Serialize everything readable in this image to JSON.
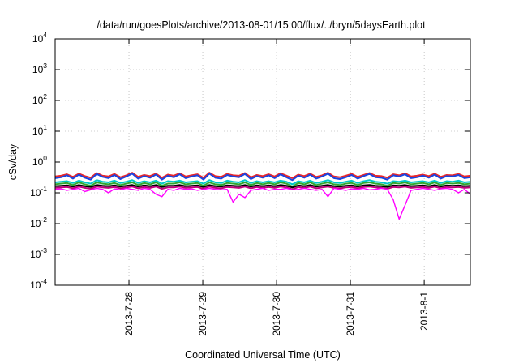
{
  "chart_data": {
    "type": "line",
    "title": "/data/run/goesPlots/archive/2013-08-01/15:00/flux/../bryn/5daysEarth.plot",
    "xlabel": "Coordinated Universal Time (UTC)",
    "ylabel": "cSv/day",
    "yscale": "log",
    "ylim": [
      0.0001,
      10000
    ],
    "xlim": [
      "2013-07-27 00:00",
      "2013-08-01 15:00"
    ],
    "grid": true,
    "y_ticks": [
      {
        "base": "10",
        "exp": "-4"
      },
      {
        "base": "10",
        "exp": "-3"
      },
      {
        "base": "10",
        "exp": "-2"
      },
      {
        "base": "10",
        "exp": "-1"
      },
      {
        "base": "10",
        "exp": "0"
      },
      {
        "base": "10",
        "exp": "1"
      },
      {
        "base": "10",
        "exp": "2"
      },
      {
        "base": "10",
        "exp": "3"
      },
      {
        "base": "10",
        "exp": "4"
      }
    ],
    "x_ticks": [
      "2013-7-28",
      "2013-7-29",
      "2013-7-30",
      "2013-7-31",
      "2013-8-1"
    ],
    "series": [
      {
        "color": "#e8262a",
        "values": [
          0.34,
          0.36,
          0.4,
          0.33,
          0.42,
          0.35,
          0.31,
          0.44,
          0.36,
          0.34,
          0.41,
          0.32,
          0.37,
          0.45,
          0.33,
          0.38,
          0.35,
          0.42,
          0.31,
          0.39,
          0.36,
          0.43,
          0.34,
          0.37,
          0.4,
          0.31,
          0.45,
          0.35,
          0.33,
          0.41,
          0.37,
          0.36,
          0.44,
          0.32,
          0.38,
          0.35,
          0.4,
          0.34,
          0.43,
          0.36,
          0.3,
          0.39,
          0.35,
          0.42,
          0.33,
          0.37,
          0.45,
          0.34,
          0.32,
          0.36,
          0.41,
          0.33,
          0.38,
          0.44,
          0.36,
          0.35,
          0.31,
          0.4,
          0.37,
          0.43,
          0.34,
          0.36,
          0.39,
          0.35,
          0.42,
          0.33,
          0.38,
          0.37,
          0.41,
          0.34,
          0.36
        ]
      },
      {
        "color": "#1a44e0",
        "values": [
          0.3,
          0.32,
          0.37,
          0.29,
          0.39,
          0.31,
          0.27,
          0.41,
          0.33,
          0.3,
          0.38,
          0.28,
          0.34,
          0.42,
          0.29,
          0.35,
          0.31,
          0.39,
          0.27,
          0.36,
          0.32,
          0.4,
          0.3,
          0.34,
          0.37,
          0.27,
          0.42,
          0.31,
          0.29,
          0.38,
          0.34,
          0.32,
          0.41,
          0.28,
          0.35,
          0.31,
          0.37,
          0.3,
          0.4,
          0.32,
          0.26,
          0.36,
          0.31,
          0.39,
          0.29,
          0.34,
          0.42,
          0.3,
          0.28,
          0.32,
          0.38,
          0.29,
          0.35,
          0.41,
          0.32,
          0.31,
          0.27,
          0.37,
          0.34,
          0.4,
          0.3,
          0.32,
          0.36,
          0.31,
          0.39,
          0.29,
          0.35,
          0.34,
          0.38,
          0.3,
          0.32
        ]
      },
      {
        "color": "#00c8c8",
        "values": [
          0.22,
          0.23,
          0.24,
          0.21,
          0.25,
          0.22,
          0.2,
          0.26,
          0.23,
          0.22,
          0.25,
          0.21,
          0.23,
          0.26,
          0.21,
          0.24,
          0.22,
          0.25,
          0.2,
          0.24,
          0.23,
          0.25,
          0.22,
          0.23,
          0.24,
          0.2,
          0.26,
          0.22,
          0.21,
          0.25,
          0.23,
          0.22,
          0.26,
          0.21,
          0.24,
          0.22,
          0.24,
          0.22,
          0.25,
          0.23,
          0.19,
          0.24,
          0.22,
          0.25,
          0.21,
          0.23,
          0.26,
          0.22,
          0.21,
          0.23,
          0.25,
          0.21,
          0.24,
          0.26,
          0.23,
          0.22,
          0.2,
          0.24,
          0.23,
          0.25,
          0.22,
          0.23,
          0.24,
          0.22,
          0.25,
          0.21,
          0.24,
          0.23,
          0.25,
          0.22,
          0.23
        ]
      },
      {
        "color": "#2fa82f",
        "values": [
          0.19,
          0.2,
          0.21,
          0.18,
          0.22,
          0.19,
          0.17,
          0.22,
          0.2,
          0.19,
          0.21,
          0.18,
          0.2,
          0.22,
          0.18,
          0.21,
          0.19,
          0.22,
          0.17,
          0.2,
          0.2,
          0.22,
          0.19,
          0.2,
          0.21,
          0.17,
          0.22,
          0.19,
          0.18,
          0.21,
          0.2,
          0.19,
          0.22,
          0.18,
          0.21,
          0.19,
          0.21,
          0.19,
          0.22,
          0.2,
          0.16,
          0.21,
          0.19,
          0.22,
          0.18,
          0.2,
          0.22,
          0.19,
          0.18,
          0.2,
          0.21,
          0.18,
          0.21,
          0.22,
          0.2,
          0.19,
          0.17,
          0.21,
          0.2,
          0.22,
          0.19,
          0.2,
          0.21,
          0.19,
          0.22,
          0.18,
          0.21,
          0.2,
          0.21,
          0.19,
          0.2
        ]
      },
      {
        "color": "#000000",
        "values": [
          0.165,
          0.17,
          0.175,
          0.16,
          0.18,
          0.165,
          0.155,
          0.18,
          0.17,
          0.165,
          0.175,
          0.16,
          0.17,
          0.18,
          0.16,
          0.175,
          0.165,
          0.18,
          0.155,
          0.17,
          0.17,
          0.18,
          0.165,
          0.17,
          0.175,
          0.155,
          0.18,
          0.165,
          0.16,
          0.175,
          0.17,
          0.165,
          0.18,
          0.16,
          0.175,
          0.165,
          0.175,
          0.165,
          0.18,
          0.17,
          0.15,
          0.175,
          0.165,
          0.18,
          0.16,
          0.17,
          0.18,
          0.165,
          0.16,
          0.17,
          0.175,
          0.16,
          0.175,
          0.18,
          0.17,
          0.165,
          0.155,
          0.175,
          0.17,
          0.18,
          0.165,
          0.17,
          0.175,
          0.165,
          0.18,
          0.16,
          0.175,
          0.17,
          0.175,
          0.165,
          0.17
        ]
      },
      {
        "color": "#c0007a",
        "values": [
          0.145,
          0.15,
          0.155,
          0.14,
          0.16,
          0.145,
          0.135,
          0.16,
          0.15,
          0.145,
          0.155,
          0.14,
          0.15,
          0.16,
          0.14,
          0.155,
          0.145,
          0.16,
          0.135,
          0.15,
          0.15,
          0.16,
          0.145,
          0.15,
          0.155,
          0.135,
          0.16,
          0.145,
          0.14,
          0.155,
          0.15,
          0.145,
          0.16,
          0.14,
          0.155,
          0.145,
          0.155,
          0.145,
          0.16,
          0.15,
          0.13,
          0.155,
          0.145,
          0.16,
          0.14,
          0.15,
          0.16,
          0.145,
          0.14,
          0.15,
          0.155,
          0.14,
          0.155,
          0.16,
          0.15,
          0.145,
          0.135,
          0.155,
          0.15,
          0.16,
          0.145,
          0.15,
          0.155,
          0.145,
          0.16,
          0.14,
          0.155,
          0.15,
          0.155,
          0.145,
          0.15
        ]
      },
      {
        "color": "#ff00ff",
        "values": [
          0.13,
          0.135,
          0.12,
          0.13,
          0.14,
          0.11,
          0.125,
          0.14,
          0.13,
          0.1,
          0.135,
          0.125,
          0.14,
          0.13,
          0.12,
          0.14,
          0.13,
          0.09,
          0.075,
          0.13,
          0.12,
          0.14,
          0.13,
          0.135,
          0.12,
          0.13,
          0.14,
          0.13,
          0.125,
          0.13,
          0.05,
          0.09,
          0.07,
          0.12,
          0.13,
          0.14,
          0.12,
          0.13,
          0.13,
          0.14,
          0.125,
          0.13,
          0.14,
          0.13,
          0.12,
          0.13,
          0.075,
          0.14,
          0.13,
          0.12,
          0.135,
          0.13,
          0.14,
          0.125,
          0.13,
          0.14,
          0.13,
          0.06,
          0.014,
          0.04,
          0.12,
          0.13,
          0.14,
          0.13,
          0.12,
          0.135,
          0.14,
          0.13,
          0.1,
          0.13,
          0.09
        ]
      }
    ]
  }
}
